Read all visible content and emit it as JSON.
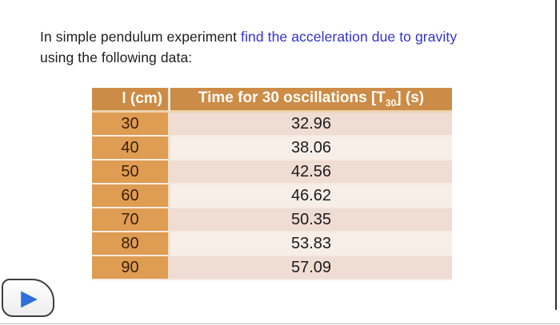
{
  "question": {
    "part1": "In simple pendulum experiment ",
    "highlight": "find the acceleration due to gravity",
    "part2": "using the following data:"
  },
  "table": {
    "headers": {
      "length": "l (cm)",
      "time_prefix": "Time for 30 oscillations [T",
      "time_subscript": "30",
      "time_suffix": "] (s)"
    },
    "rows": [
      {
        "l_cm": "30",
        "t30_s": "32.96"
      },
      {
        "l_cm": "40",
        "t30_s": "38.06"
      },
      {
        "l_cm": "50",
        "t30_s": "42.56"
      },
      {
        "l_cm": "60",
        "t30_s": "46.62"
      },
      {
        "l_cm": "70",
        "t30_s": "50.35"
      },
      {
        "l_cm": "80",
        "t30_s": "53.83"
      },
      {
        "l_cm": "90",
        "t30_s": "57.09"
      }
    ]
  },
  "icons": {
    "play": "▶"
  },
  "colors": {
    "header_bg": "#cc8c47",
    "length_col_bg": "#de9d52",
    "row_dark": "#efdcd3",
    "row_light": "#f7eee8",
    "length_text": "#40200a",
    "highlight_text": "#3333cc",
    "play_triangle": "#2d6fdb"
  }
}
